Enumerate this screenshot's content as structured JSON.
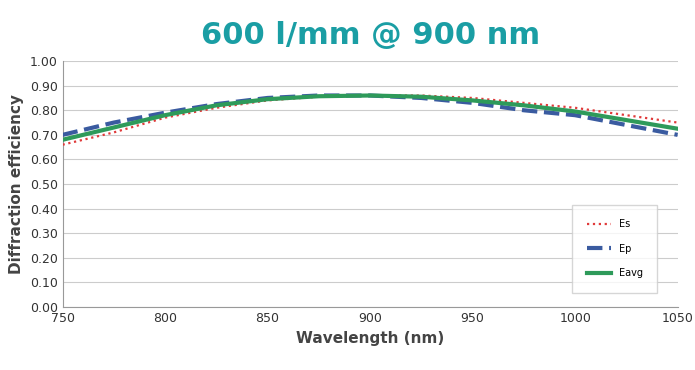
{
  "chart_data": {
    "type": "line",
    "title": "600 l/mm @ 900 nm",
    "x_label": "Wavelength (nm)",
    "y_label": "Diffraction efficiency",
    "x": [
      750,
      775,
      800,
      825,
      850,
      875,
      900,
      925,
      950,
      975,
      1000,
      1025,
      1050
    ],
    "series": [
      {
        "name": "Es",
        "color": "#e03a3a",
        "line_style": "dotted",
        "values": [
          0.66,
          0.71,
          0.77,
          0.81,
          0.84,
          0.855,
          0.86,
          0.86,
          0.85,
          0.83,
          0.81,
          0.78,
          0.75
        ]
      },
      {
        "name": "Ep",
        "color": "#3a5ba0",
        "line_style": "dashed",
        "values": [
          0.7,
          0.75,
          0.79,
          0.825,
          0.85,
          0.86,
          0.86,
          0.85,
          0.83,
          0.8,
          0.78,
          0.74,
          0.7
        ]
      },
      {
        "name": "Eavg",
        "color": "#2e9a5a",
        "line_style": "solid",
        "values": [
          0.68,
          0.73,
          0.78,
          0.82,
          0.845,
          0.857,
          0.86,
          0.855,
          0.84,
          0.82,
          0.795,
          0.76,
          0.725
        ]
      }
    ],
    "xlim": [
      750,
      1050
    ],
    "xticks": [
      750,
      800,
      850,
      900,
      950,
      1000,
      1050
    ],
    "ylim": [
      0,
      1
    ],
    "yticks": [
      {
        "value": 0,
        "label": "0.00"
      },
      {
        "value": 0.1,
        "label": "0.10"
      },
      {
        "value": 0.2,
        "label": "0.20"
      },
      {
        "value": 0.3,
        "label": "0.30"
      },
      {
        "value": 0.4,
        "label": "0.40"
      },
      {
        "value": 0.5,
        "label": "0.50"
      },
      {
        "value": 0.6,
        "label": "0.60"
      },
      {
        "value": 0.7,
        "label": "0.70"
      },
      {
        "value": 0.8,
        "label": "0.80"
      },
      {
        "value": 0.9,
        "label": "0.90"
      },
      {
        "value": 1,
        "label": "1.00"
      }
    ],
    "grid": true,
    "legend": "lower right"
  }
}
